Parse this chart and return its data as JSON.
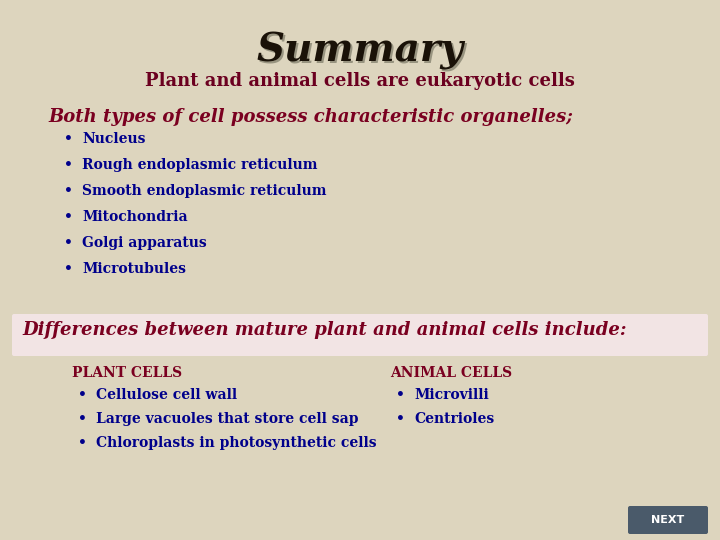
{
  "background_color": "#ddd5be",
  "title": "Summary",
  "title_color": "#1a1208",
  "title_fontsize": 28,
  "subtitle": "Plant and animal cells are eukaryotic cells",
  "subtitle_color": "#6b0020",
  "subtitle_fontsize": 13,
  "section1_heading": "Both types of cell possess characteristic organelles;",
  "section1_heading_color": "#7a0020",
  "section1_heading_fontsize": 13,
  "section1_bullets": [
    "Nucleus",
    "Rough endoplasmic reticulum",
    "Smooth endoplasmic reticulum",
    "Mitochondria",
    "Golgi apparatus",
    "Microtubules"
  ],
  "bullet_color": "#00008b",
  "bullet_fontsize": 10,
  "section2_heading": "Differences between mature plant and animal cells include:",
  "section2_heading_color": "#7a0020",
  "section2_heading_fontsize": 13,
  "section2_bg_color": "#f2e4e4",
  "plant_header": "PLANT CELLS",
  "plant_header_color": "#7a0020",
  "plant_bullets": [
    "Cellulose cell wall",
    "Large vacuoles that store cell sap",
    "Chloroplasts in photosynthetic cells"
  ],
  "animal_header": "ANIMAL CELLS",
  "animal_header_color": "#7a0020",
  "animal_bullets": [
    "Microvilli",
    "Centrioles"
  ],
  "next_button_color": "#4a5a6a",
  "next_button_text": "NEXT",
  "next_text_color": "#ffffff"
}
